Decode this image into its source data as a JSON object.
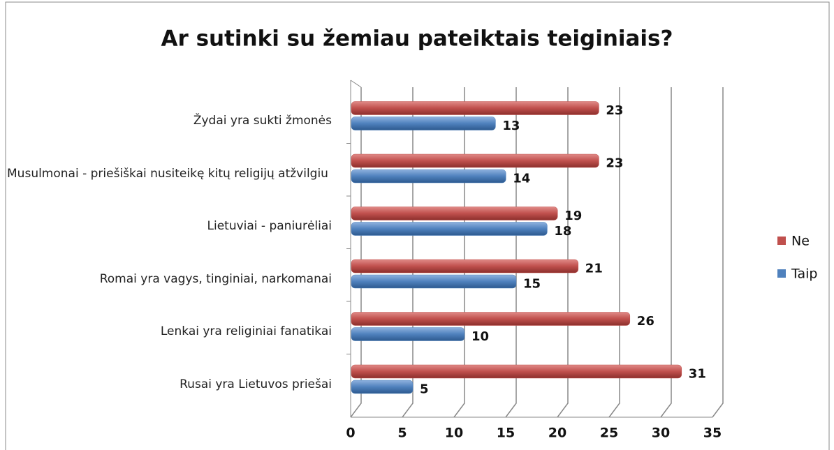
{
  "chart_data": {
    "type": "bar",
    "orientation": "horizontal",
    "title": "Ar sutinki su žemiau pateiktais teiginiais?",
    "categories": [
      "Žydai yra sukti žmonės",
      "Musulmonai - priešiškai nusiteikę kitų religijų atžvilgiu",
      "Lietuviai - paniurėliai",
      "Romai yra vagys, tinginiai, narkomanai",
      "Lenkai yra religiniai fanatikai",
      "Rusai yra Lietuvos priešai"
    ],
    "series": [
      {
        "name": "Ne",
        "color": "#c0504d",
        "values": [
          23,
          23,
          19,
          21,
          26,
          31
        ]
      },
      {
        "name": "Taip",
        "color": "#4f81bd",
        "values": [
          13,
          14,
          18,
          15,
          10,
          5
        ]
      }
    ],
    "xlim": [
      0,
      35
    ],
    "xticks": [
      0,
      5,
      10,
      15,
      20,
      25,
      30,
      35
    ],
    "grid": true,
    "legend": "right"
  }
}
